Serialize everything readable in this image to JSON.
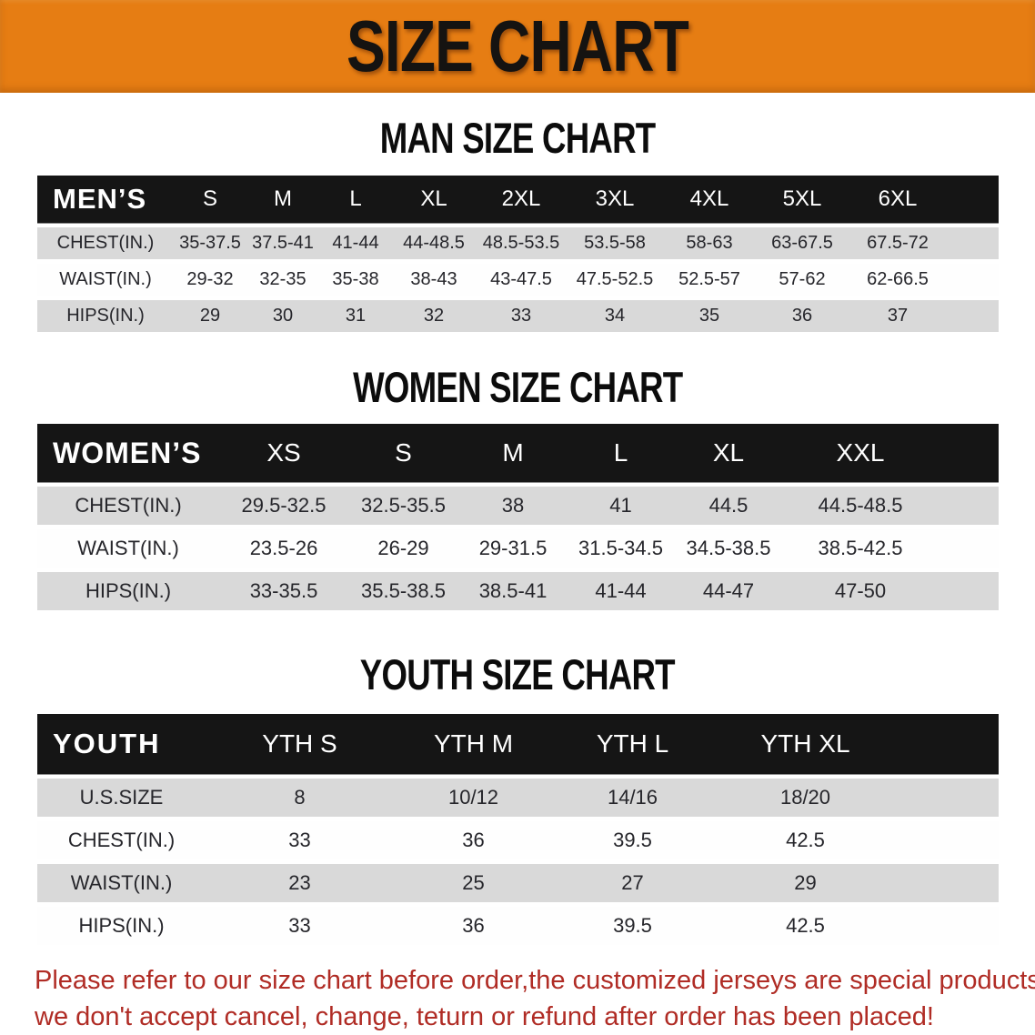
{
  "banner": {
    "title": "SIZE CHART",
    "bg_color": "#e67d13",
    "text_color": "#151311"
  },
  "sections": {
    "men": {
      "heading": "MAN SIZE CHART"
    },
    "women": {
      "heading": "WOMEN SIZE CHART"
    },
    "youth": {
      "heading": "YOUTH SIZE CHART"
    }
  },
  "tables": {
    "men": {
      "label": "MEN’S",
      "sizes": [
        "S",
        "M",
        "L",
        "XL",
        "2XL",
        "3XL",
        "4XL",
        "5XL",
        "6XL"
      ],
      "rows": [
        {
          "label": "CHEST(IN.)",
          "values": [
            "35-37.5",
            "37.5-41",
            "41-44",
            "44-48.5",
            "48.5-53.5",
            "53.5-58",
            "58-63",
            "63-67.5",
            "67.5-72"
          ]
        },
        {
          "label": "WAIST(IN.)",
          "values": [
            "29-32",
            "32-35",
            "35-38",
            "38-43",
            "43-47.5",
            "47.5-52.5",
            "52.5-57",
            "57-62",
            "62-66.5"
          ]
        },
        {
          "label": "HIPS(IN.)",
          "values": [
            "29",
            "30",
            "31",
            "32",
            "33",
            "34",
            "35",
            "36",
            "37"
          ]
        }
      ]
    },
    "women": {
      "label": "WOMEN’S",
      "sizes": [
        "XS",
        "S",
        "M",
        "L",
        "XL",
        "XXL"
      ],
      "rows": [
        {
          "label": "CHEST(IN.)",
          "values": [
            "29.5-32.5",
            "32.5-35.5",
            "38",
            "41",
            "44.5",
            "44.5-48.5"
          ]
        },
        {
          "label": "WAIST(IN.)",
          "values": [
            "23.5-26",
            "26-29",
            "29-31.5",
            "31.5-34.5",
            "34.5-38.5",
            "38.5-42.5"
          ]
        },
        {
          "label": "HIPS(IN.)",
          "values": [
            "33-35.5",
            "35.5-38.5",
            "38.5-41",
            "41-44",
            "44-47",
            "47-50"
          ]
        }
      ]
    },
    "youth": {
      "label": "YOUTH",
      "sizes": [
        "YTH S",
        "YTH M",
        "YTH L",
        "YTH XL"
      ],
      "rows": [
        {
          "label": "U.S.SIZE",
          "values": [
            "8",
            "10/12",
            "14/16",
            "18/20"
          ]
        },
        {
          "label": "CHEST(IN.)",
          "values": [
            "33",
            "36",
            "39.5",
            "42.5"
          ]
        },
        {
          "label": "WAIST(IN.)",
          "values": [
            "23",
            "25",
            "27",
            "29"
          ]
        },
        {
          "label": "HIPS(IN.)",
          "values": [
            "33",
            "36",
            "39.5",
            "42.5"
          ]
        }
      ]
    }
  },
  "disclaimer": {
    "line1": "Please refer to our size chart before order,the customized jerseys are special products,",
    "line2": "we don't accept cancel, change, teturn or refund after order has been placed!",
    "color": "#b02c25"
  },
  "colors": {
    "header_bar": "#151515",
    "row_shaded": "#d9d9d9",
    "row_plain": "#fefefe",
    "body_text": "#26262b"
  }
}
